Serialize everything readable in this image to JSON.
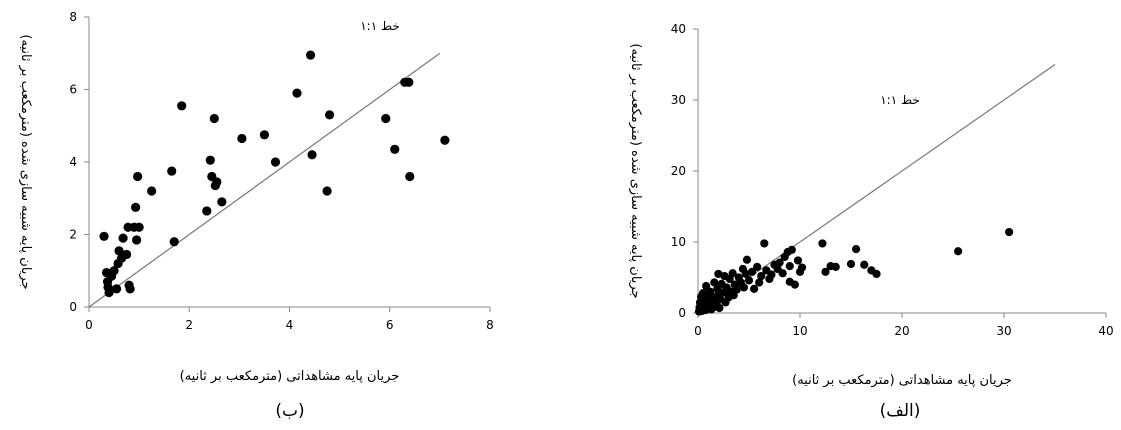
{
  "chart_data": [
    {
      "type": "scatter",
      "panel_label": "(ب)",
      "xlabel": "جریان پایه مشاهداتی (مترمکعب بر ثانیه)",
      "ylabel": "جریان پایه شبیه سازی شده (مترمکعب بر ثانیه)",
      "annotation": "خط ۱:۱",
      "xlim": [
        0,
        8
      ],
      "ylim": [
        0,
        8
      ],
      "xticks": [
        0,
        2,
        4,
        6,
        8
      ],
      "yticks": [
        0,
        2,
        4,
        6,
        8
      ],
      "line_1to1": [
        0,
        7
      ],
      "points": [
        [
          0.3,
          1.95
        ],
        [
          0.35,
          0.95
        ],
        [
          0.37,
          0.7
        ],
        [
          0.38,
          0.55
        ],
        [
          0.4,
          0.4
        ],
        [
          0.45,
          0.85
        ],
        [
          0.5,
          1.0
        ],
        [
          0.55,
          0.5
        ],
        [
          0.58,
          1.2
        ],
        [
          0.6,
          1.55
        ],
        [
          0.65,
          1.35
        ],
        [
          0.68,
          1.9
        ],
        [
          0.75,
          1.45
        ],
        [
          0.78,
          2.2
        ],
        [
          0.8,
          0.6
        ],
        [
          0.82,
          0.5
        ],
        [
          0.9,
          2.2
        ],
        [
          0.93,
          2.75
        ],
        [
          0.95,
          1.85
        ],
        [
          0.97,
          3.6
        ],
        [
          1.0,
          2.2
        ],
        [
          1.25,
          3.2
        ],
        [
          1.65,
          3.75
        ],
        [
          1.7,
          1.8
        ],
        [
          1.85,
          5.55
        ],
        [
          2.35,
          2.65
        ],
        [
          2.42,
          4.05
        ],
        [
          2.45,
          3.6
        ],
        [
          2.5,
          5.2
        ],
        [
          2.52,
          3.35
        ],
        [
          2.55,
          3.45
        ],
        [
          2.65,
          2.9
        ],
        [
          3.05,
          4.65
        ],
        [
          3.5,
          4.75
        ],
        [
          3.72,
          4.0
        ],
        [
          4.15,
          5.9
        ],
        [
          4.42,
          6.95
        ],
        [
          4.45,
          4.2
        ],
        [
          4.75,
          3.2
        ],
        [
          4.8,
          5.3
        ],
        [
          5.92,
          5.2
        ],
        [
          6.1,
          4.35
        ],
        [
          6.3,
          6.2
        ],
        [
          6.38,
          6.2
        ],
        [
          6.4,
          3.6
        ],
        [
          7.1,
          4.6
        ]
      ]
    },
    {
      "type": "scatter",
      "panel_label": "(الف)",
      "xlabel": "جریان پایه مشاهداتی (مترمکعب بر ثانیه)",
      "ylabel": "جریان پایه شبیه سازی شده (مترمکعب بر ثانیه)",
      "annotation": "خط ۱:۱",
      "xlim": [
        0,
        40
      ],
      "ylim": [
        0,
        40
      ],
      "xticks": [
        0,
        10,
        20,
        30,
        40
      ],
      "yticks": [
        0,
        10,
        20,
        30,
        40
      ],
      "line_1to1": [
        0,
        35
      ],
      "points": [
        [
          0.1,
          0.2
        ],
        [
          0.15,
          0.8
        ],
        [
          0.2,
          1.5
        ],
        [
          0.25,
          0.5
        ],
        [
          0.3,
          2.3
        ],
        [
          0.3,
          1.0
        ],
        [
          0.4,
          0.3
        ],
        [
          0.45,
          1.6
        ],
        [
          0.5,
          2.8
        ],
        [
          0.5,
          0.6
        ],
        [
          0.6,
          1.2
        ],
        [
          0.7,
          2.0
        ],
        [
          0.75,
          0.4
        ],
        [
          0.8,
          3.8
        ],
        [
          0.9,
          1.4
        ],
        [
          1.0,
          0.8
        ],
        [
          1.0,
          2.4
        ],
        [
          1.1,
          1.8
        ],
        [
          1.2,
          3.0
        ],
        [
          1.3,
          0.5
        ],
        [
          1.4,
          1.2
        ],
        [
          1.5,
          2.2
        ],
        [
          1.6,
          4.3
        ],
        [
          1.7,
          0.9
        ],
        [
          1.8,
          1.6
        ],
        [
          1.9,
          3.4
        ],
        [
          2.0,
          5.5
        ],
        [
          2.0,
          2.6
        ],
        [
          2.1,
          0.7
        ],
        [
          2.2,
          1.9
        ],
        [
          2.3,
          4.1
        ],
        [
          2.5,
          2.9
        ],
        [
          2.6,
          5.2
        ],
        [
          2.7,
          1.5
        ],
        [
          2.8,
          3.6
        ],
        [
          3.0,
          2.2
        ],
        [
          3.1,
          4.8
        ],
        [
          3.2,
          3.0
        ],
        [
          3.4,
          5.6
        ],
        [
          3.5,
          2.5
        ],
        [
          3.6,
          4.0
        ],
        [
          3.8,
          3.3
        ],
        [
          4.0,
          5.0
        ],
        [
          4.2,
          4.3
        ],
        [
          4.4,
          6.2
        ],
        [
          4.5,
          3.6
        ],
        [
          4.7,
          5.5
        ],
        [
          4.8,
          7.5
        ],
        [
          5.0,
          4.6
        ],
        [
          5.3,
          5.8
        ],
        [
          5.5,
          3.4
        ],
        [
          5.8,
          6.5
        ],
        [
          6.0,
          4.3
        ],
        [
          6.2,
          5.2
        ],
        [
          6.5,
          9.8
        ],
        [
          6.7,
          6.0
        ],
        [
          7.0,
          4.8
        ],
        [
          7.2,
          5.4
        ],
        [
          7.5,
          6.8
        ],
        [
          7.8,
          6.2
        ],
        [
          8.0,
          7.1
        ],
        [
          8.3,
          5.6
        ],
        [
          8.5,
          7.9
        ],
        [
          8.8,
          8.6
        ],
        [
          9.0,
          6.6
        ],
        [
          9.0,
          4.4
        ],
        [
          9.2,
          8.9
        ],
        [
          9.5,
          4.0
        ],
        [
          9.8,
          7.4
        ],
        [
          10.0,
          5.8
        ],
        [
          10.2,
          6.4
        ],
        [
          12.2,
          9.8
        ],
        [
          12.5,
          5.8
        ],
        [
          13.0,
          6.6
        ],
        [
          13.5,
          6.5
        ],
        [
          15.0,
          6.9
        ],
        [
          15.5,
          9.0
        ],
        [
          16.3,
          6.8
        ],
        [
          17.0,
          6.0
        ],
        [
          17.5,
          5.5
        ],
        [
          25.5,
          8.7
        ],
        [
          30.5,
          11.4
        ]
      ]
    }
  ]
}
